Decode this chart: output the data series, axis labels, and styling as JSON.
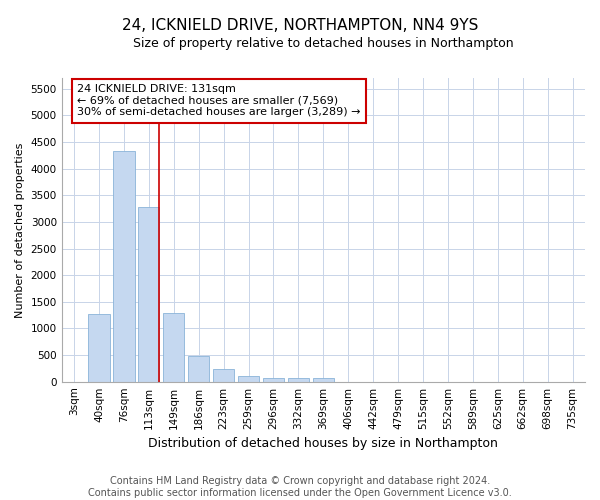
{
  "title": "24, ICKNIELD DRIVE, NORTHAMPTON, NN4 9YS",
  "subtitle": "Size of property relative to detached houses in Northampton",
  "xlabel": "Distribution of detached houses by size in Northampton",
  "ylabel": "Number of detached properties",
  "footer_line1": "Contains HM Land Registry data © Crown copyright and database right 2024.",
  "footer_line2": "Contains public sector information licensed under the Open Government Licence v3.0.",
  "bar_color": "#c5d8f0",
  "bar_edge_color": "#8ab4d8",
  "categories": [
    "3sqm",
    "40sqm",
    "76sqm",
    "113sqm",
    "149sqm",
    "186sqm",
    "223sqm",
    "259sqm",
    "296sqm",
    "332sqm",
    "369sqm",
    "406sqm",
    "442sqm",
    "479sqm",
    "515sqm",
    "552sqm",
    "589sqm",
    "625sqm",
    "662sqm",
    "698sqm",
    "735sqm"
  ],
  "values": [
    0,
    1270,
    4330,
    3280,
    1290,
    480,
    230,
    100,
    75,
    70,
    70,
    0,
    0,
    0,
    0,
    0,
    0,
    0,
    0,
    0,
    0
  ],
  "ylim": [
    0,
    5700
  ],
  "yticks": [
    0,
    500,
    1000,
    1500,
    2000,
    2500,
    3000,
    3500,
    4000,
    4500,
    5000,
    5500
  ],
  "property_line_x": 3.42,
  "annotation_text_line1": "24 ICKNIELD DRIVE: 131sqm",
  "annotation_text_line2": "← 69% of detached houses are smaller (7,569)",
  "annotation_text_line3": "30% of semi-detached houses are larger (3,289) →",
  "annotation_box_color": "#ffffff",
  "annotation_border_color": "#cc0000",
  "grid_color": "#c8d4e8",
  "plot_bg_color": "#ffffff",
  "fig_bg_color": "#ffffff",
  "title_fontsize": 11,
  "subtitle_fontsize": 9,
  "ylabel_fontsize": 8,
  "xlabel_fontsize": 9,
  "tick_fontsize": 7.5,
  "footer_fontsize": 7
}
